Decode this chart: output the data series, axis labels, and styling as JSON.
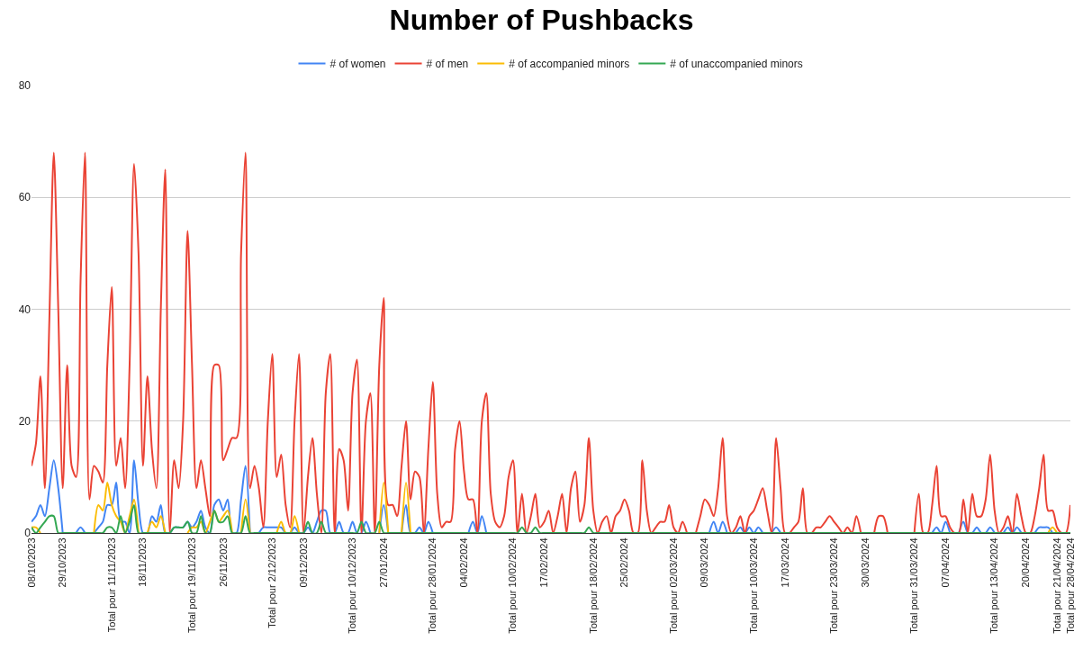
{
  "chart_data": {
    "type": "line",
    "title": "Number of Pushbacks",
    "categories": [
      "08/10/2023",
      null,
      null,
      null,
      null,
      null,
      null,
      "29/10/2023",
      null,
      null,
      null,
      null,
      null,
      null,
      null,
      null,
      null,
      null,
      "Total pour 11/11/2023",
      null,
      null,
      null,
      null,
      null,
      null,
      "18/11/2023",
      null,
      null,
      null,
      null,
      null,
      null,
      null,
      null,
      null,
      null,
      "Total pour 19/11/2023",
      null,
      null,
      null,
      null,
      null,
      null,
      "26/11/2023",
      null,
      null,
      null,
      null,
      null,
      null,
      null,
      null,
      null,
      null,
      "Total pour 2/12/2023",
      null,
      null,
      null,
      null,
      null,
      null,
      "09/12/2023",
      null,
      null,
      null,
      null,
      null,
      null,
      null,
      null,
      null,
      null,
      "Total pour 10/12/2023",
      null,
      null,
      null,
      null,
      null,
      null,
      "27/01/2024",
      null,
      null,
      null,
      null,
      null,
      null,
      null,
      null,
      null,
      null,
      "Total pour 28/01/2024",
      null,
      null,
      null,
      null,
      null,
      null,
      "04/02/2024",
      null,
      null,
      null,
      null,
      null,
      null,
      null,
      null,
      null,
      null,
      "Total pour 10/02/2024",
      null,
      null,
      null,
      null,
      null,
      null,
      "17/02/2024",
      null,
      null,
      null,
      null,
      null,
      null,
      null,
      null,
      null,
      null,
      "Total pour 18/02/2024",
      null,
      null,
      null,
      null,
      null,
      null,
      "25/02/2024",
      null,
      null,
      null,
      null,
      null,
      null,
      null,
      null,
      null,
      null,
      "Total pour 02/03/2024",
      null,
      null,
      null,
      null,
      null,
      null,
      "09/03/2024",
      null,
      null,
      null,
      null,
      null,
      null,
      null,
      null,
      null,
      null,
      "Total pour 10/03/2024",
      null,
      null,
      null,
      null,
      null,
      null,
      "17/03/2024",
      null,
      null,
      null,
      null,
      null,
      null,
      null,
      null,
      null,
      null,
      "Total pour 23/03/2024",
      null,
      null,
      null,
      null,
      null,
      null,
      "30/03/2024",
      null,
      null,
      null,
      null,
      null,
      null,
      null,
      null,
      null,
      null,
      "Total pour 31/03/2024",
      null,
      null,
      null,
      null,
      null,
      null,
      "07/04/2024",
      null,
      null,
      null,
      null,
      null,
      null,
      null,
      null,
      null,
      null,
      "Total pour 13/04/2024",
      null,
      null,
      null,
      null,
      null,
      null,
      "20/04/2024",
      null,
      null,
      null,
      null,
      null,
      null,
      "Total pour 21/04/2024",
      null,
      null,
      "Total pour 28/04/2024"
    ],
    "series": [
      {
        "name": "# of women",
        "color": "#4285f4",
        "values": [
          2,
          3,
          5,
          3,
          8,
          13,
          8,
          0,
          null,
          null,
          0,
          1,
          0,
          null,
          0,
          1,
          2,
          5,
          5,
          9,
          2,
          2,
          0,
          13,
          5,
          0,
          0,
          3,
          2,
          5,
          0,
          0,
          1,
          1,
          1,
          2,
          1,
          2,
          4,
          1,
          0,
          5,
          6,
          4,
          6,
          0,
          0,
          6,
          12,
          0,
          null,
          0,
          1,
          1,
          1,
          1,
          1,
          0,
          0,
          1,
          0,
          0,
          1,
          0,
          2,
          4,
          4,
          0,
          0,
          2,
          0,
          0,
          2,
          0,
          0,
          2,
          0,
          null,
          0,
          5,
          0,
          null,
          null,
          0,
          5,
          0,
          0,
          1,
          0,
          2,
          0,
          null,
          null,
          null,
          null,
          null,
          null,
          null,
          0,
          2,
          0,
          3,
          0,
          null,
          null,
          null,
          null,
          null,
          null,
          null,
          null,
          null,
          null,
          null,
          null,
          null,
          null,
          null,
          null,
          null,
          null,
          null,
          null,
          null,
          null,
          null,
          null,
          null,
          null,
          null,
          null,
          null,
          null,
          null,
          null,
          null,
          null,
          null,
          null,
          null,
          null,
          null,
          null,
          null,
          null,
          null,
          null,
          null,
          null,
          null,
          null,
          null,
          0,
          2,
          0,
          2,
          0,
          null,
          0,
          1,
          0,
          1,
          0,
          1,
          0,
          null,
          0,
          1,
          0,
          null,
          null,
          null,
          null,
          null,
          null,
          null,
          null,
          null,
          null,
          null,
          null,
          null,
          null,
          null,
          null,
          null,
          null,
          null,
          null,
          null,
          null,
          null,
          null,
          null,
          null,
          null,
          null,
          null,
          null,
          null,
          null,
          null,
          0,
          1,
          0,
          2,
          0,
          null,
          0,
          2,
          0,
          0,
          1,
          0,
          0,
          1,
          0,
          null,
          0,
          1,
          0,
          1,
          0,
          null,
          null,
          0,
          1,
          1,
          1,
          0,
          null,
          null,
          null,
          null
        ]
      },
      {
        "name": "# of men",
        "color": "#ea4335",
        "values": [
          12,
          16,
          28,
          8,
          38,
          68,
          40,
          8,
          30,
          12,
          10,
          45,
          68,
          6,
          12,
          11,
          9,
          30,
          44,
          12,
          17,
          8,
          30,
          66,
          50,
          12,
          28,
          15,
          8,
          40,
          65,
          0,
          13,
          8,
          20,
          54,
          30,
          8,
          13,
          8,
          3,
          30,
          30,
          13,
          15,
          17,
          17,
          50,
          68,
          8,
          12,
          8,
          1,
          20,
          32,
          10,
          14,
          5,
          1,
          20,
          32,
          0,
          10,
          17,
          7,
          0,
          25,
          32,
          0,
          15,
          13,
          4,
          25,
          31,
          0,
          20,
          25,
          0,
          30,
          42,
          5,
          5,
          3,
          12,
          20,
          6,
          11,
          10,
          0,
          15,
          27,
          7,
          1,
          2,
          2,
          15,
          20,
          11,
          6,
          6,
          0,
          20,
          25,
          7,
          2,
          1,
          3,
          10,
          13,
          0,
          7,
          0,
          3,
          7,
          1,
          2,
          4,
          0,
          3,
          7,
          0,
          8,
          11,
          2,
          5,
          17,
          4,
          0,
          2,
          3,
          0,
          3,
          4,
          6,
          4,
          0,
          0,
          13,
          4,
          0,
          1,
          2,
          2,
          5,
          1,
          0,
          2,
          0,
          null,
          0,
          3,
          6,
          5,
          3,
          8,
          17,
          3,
          0,
          1,
          3,
          0,
          3,
          4,
          6,
          8,
          4,
          0,
          17,
          8,
          0,
          0,
          1,
          2,
          8,
          0,
          0,
          1,
          1,
          2,
          3,
          2,
          1,
          0,
          1,
          0,
          3,
          0,
          null,
          null,
          0,
          3,
          3,
          0,
          null,
          null,
          null,
          null,
          null,
          0,
          7,
          0,
          0,
          5,
          12,
          3,
          3,
          1,
          0,
          0,
          6,
          0,
          7,
          3,
          3,
          6,
          14,
          4,
          0,
          1,
          3,
          0,
          7,
          3,
          0,
          0,
          3,
          8,
          14,
          4,
          4,
          1,
          0,
          0,
          5
        ]
      },
      {
        "name": "# of accompanied minors",
        "color": "#fbbc04",
        "values": [
          1,
          1,
          0,
          null,
          null,
          null,
          null,
          null,
          null,
          null,
          null,
          null,
          null,
          null,
          0,
          5,
          4,
          9,
          5,
          3,
          2,
          0,
          3,
          6,
          0,
          null,
          0,
          2,
          1,
          3,
          0,
          null,
          null,
          null,
          null,
          0,
          1,
          1,
          2,
          0,
          2,
          4,
          2,
          3,
          4,
          0,
          null,
          0,
          6,
          0,
          null,
          null,
          null,
          null,
          null,
          0,
          2,
          0,
          0,
          3,
          0,
          null,
          null,
          null,
          null,
          null,
          null,
          null,
          null,
          null,
          null,
          null,
          null,
          null,
          null,
          null,
          null,
          null,
          0,
          9,
          0,
          null,
          null,
          0,
          9,
          0,
          null,
          null,
          null,
          null,
          null,
          null,
          null,
          null,
          null,
          null,
          null,
          null,
          null,
          null,
          null,
          null,
          null,
          null,
          null,
          null,
          null,
          null,
          null,
          null,
          null,
          null,
          null,
          null,
          null,
          null,
          null,
          null,
          null,
          null,
          null,
          null,
          null,
          null,
          null,
          null,
          null,
          null,
          null,
          null,
          null,
          null,
          null,
          null,
          null,
          null,
          null,
          null,
          null,
          null,
          null,
          null,
          null,
          null,
          null,
          null,
          null,
          null,
          null,
          null,
          null,
          null,
          null,
          null,
          null,
          null,
          null,
          null,
          null,
          null,
          null,
          null,
          null,
          null,
          null,
          null,
          null,
          null,
          null,
          null,
          null,
          null,
          null,
          null,
          null,
          null,
          null,
          null,
          null,
          null,
          null,
          null,
          null,
          null,
          null,
          null,
          null,
          null,
          null,
          null,
          null,
          null,
          null,
          null,
          null,
          null,
          null,
          null,
          null,
          null,
          null,
          null,
          null,
          null,
          null,
          null,
          null,
          null,
          null,
          null,
          null,
          null,
          null,
          null,
          null,
          null,
          null,
          null,
          null,
          null,
          null,
          null,
          null,
          null,
          null,
          null,
          null,
          null,
          0,
          1,
          0,
          null,
          null,
          null
        ]
      },
      {
        "name": "# of unaccompanied minors",
        "color": "#34a853",
        "values": [
          1,
          0,
          1,
          2,
          3,
          3,
          0,
          0,
          0,
          0,
          0,
          0,
          0,
          0,
          0,
          0,
          0,
          1,
          1,
          0,
          3,
          0,
          2,
          5,
          0,
          0,
          0,
          0,
          0,
          0,
          0,
          0,
          1,
          1,
          1,
          2,
          0,
          0,
          3,
          0,
          0,
          4,
          2,
          2,
          3,
          0,
          0,
          0,
          3,
          0,
          0,
          0,
          0,
          0,
          0,
          0,
          0,
          0,
          0,
          0,
          0,
          0,
          2,
          0,
          0,
          2,
          0,
          0,
          0,
          0,
          0,
          0,
          0,
          0,
          2,
          0,
          0,
          0,
          2,
          0,
          0,
          0,
          0,
          0,
          0,
          0,
          0,
          0,
          0,
          0,
          0,
          0,
          0,
          0,
          0,
          0,
          0,
          0,
          0,
          0,
          0,
          0,
          0,
          0,
          0,
          0,
          0,
          0,
          0,
          0,
          1,
          0,
          0,
          1,
          0,
          0,
          0,
          0,
          0,
          0,
          0,
          0,
          0,
          0,
          0,
          1,
          0,
          0,
          0,
          0,
          0,
          0,
          0,
          0,
          0,
          0,
          0,
          0,
          0,
          0,
          0,
          0,
          0,
          0,
          0,
          0,
          0,
          0,
          0,
          0,
          0,
          0,
          0,
          0,
          0,
          0,
          0,
          0,
          0,
          0,
          0,
          0,
          0,
          0,
          0,
          0,
          0,
          0,
          0,
          0,
          0,
          0,
          0,
          0,
          0,
          0,
          0,
          0,
          0,
          0,
          0,
          0,
          0,
          0,
          0,
          0,
          0,
          0,
          0,
          0,
          0,
          0,
          0,
          0,
          0,
          0,
          0,
          0,
          0,
          0,
          0,
          0,
          0,
          0,
          0,
          0,
          0,
          0,
          0,
          0,
          0,
          0,
          0,
          0,
          0,
          0,
          0,
          0,
          0,
          0,
          0,
          0,
          0,
          0,
          0,
          0,
          0,
          0,
          0,
          0,
          0,
          0,
          0,
          0
        ]
      }
    ],
    "ylim": [
      0,
      80
    ],
    "yticks": [
      0,
      20,
      40,
      60,
      80
    ],
    "grid": "y",
    "legend": "top",
    "marker": "none",
    "line_style": "solid"
  }
}
